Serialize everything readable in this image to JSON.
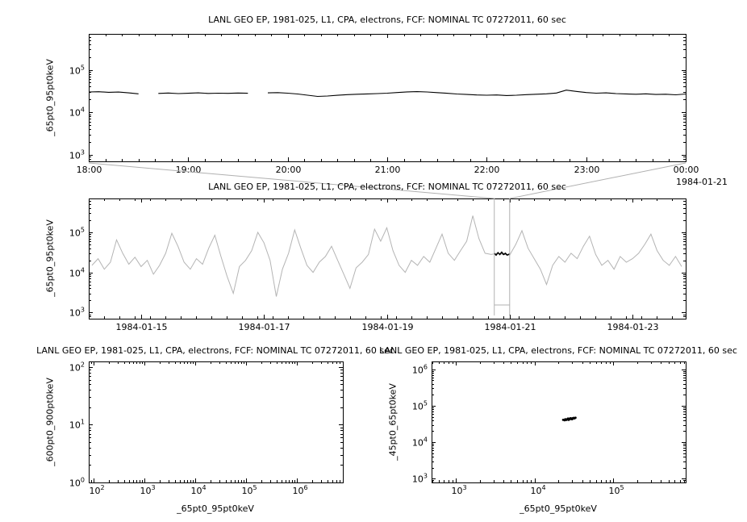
{
  "page": {
    "background": "#ffffff",
    "series_gray": "#b4b4b4",
    "context_gray": "#b0b0b0",
    "data_black": "#000000"
  },
  "chart_data": [
    {
      "id": "top",
      "type": "line",
      "title": "LANL GEO EP, 1981-025, L1, CPA, electrons, FCF: NOMINAL TC 07272011, 60 sec",
      "ylabel": "_65pt0_95pt0keV",
      "xlabel": "",
      "x_axis": {
        "scale": "linear",
        "min": 18,
        "max": 24,
        "minor_step": 0.16667,
        "corner_label": "1984-01-21",
        "major_ticks": [
          {
            "v": 18,
            "label": "18:00"
          },
          {
            "v": 19,
            "label": "19:00"
          },
          {
            "v": 20,
            "label": "20:00"
          },
          {
            "v": 21,
            "label": "21:00"
          },
          {
            "v": 22,
            "label": "22:00"
          },
          {
            "v": 23,
            "label": "23:00"
          },
          {
            "v": 24,
            "label": "00:00"
          }
        ]
      },
      "y_axis": {
        "scale": "log",
        "min": 700,
        "max": 700000,
        "major_exponents": [
          3,
          4,
          5
        ]
      },
      "series": [
        {
          "name": "_65pt0_95pt0keV",
          "color": "#000000",
          "width": 1.1,
          "points": [
            [
              18.0,
              30000
            ],
            [
              18.1,
              30400
            ],
            [
              18.2,
              29600
            ],
            [
              18.3,
              29900
            ],
            [
              18.4,
              28600
            ],
            [
              18.5,
              27200
            ],
            [
              18.6,
              null
            ],
            [
              18.7,
              27800
            ],
            [
              18.8,
              28400
            ],
            [
              18.9,
              27600
            ],
            [
              19.0,
              28000
            ],
            [
              19.1,
              28600
            ],
            [
              19.2,
              27800
            ],
            [
              19.3,
              28200
            ],
            [
              19.4,
              27900
            ],
            [
              19.5,
              28400
            ],
            [
              19.6,
              28000
            ],
            [
              19.7,
              null
            ],
            [
              19.8,
              28600
            ],
            [
              19.9,
              29000
            ],
            [
              20.0,
              28200
            ],
            [
              20.1,
              27000
            ],
            [
              20.2,
              25200
            ],
            [
              20.3,
              23600
            ],
            [
              20.4,
              24200
            ],
            [
              20.5,
              25100
            ],
            [
              20.6,
              26000
            ],
            [
              20.7,
              26600
            ],
            [
              20.8,
              27100
            ],
            [
              20.9,
              27600
            ],
            [
              21.0,
              28200
            ],
            [
              21.1,
              29200
            ],
            [
              21.2,
              30200
            ],
            [
              21.3,
              30600
            ],
            [
              21.4,
              30000
            ],
            [
              21.5,
              29000
            ],
            [
              21.6,
              28000
            ],
            [
              21.7,
              27000
            ],
            [
              21.8,
              26200
            ],
            [
              21.9,
              25600
            ],
            [
              22.0,
              25200
            ],
            [
              22.1,
              25600
            ],
            [
              22.2,
              24800
            ],
            [
              22.3,
              25200
            ],
            [
              22.4,
              26000
            ],
            [
              22.5,
              26600
            ],
            [
              22.6,
              27200
            ],
            [
              22.7,
              28400
            ],
            [
              22.8,
              33200
            ],
            [
              22.9,
              31000
            ],
            [
              23.0,
              29200
            ],
            [
              23.1,
              28200
            ],
            [
              23.2,
              28600
            ],
            [
              23.3,
              27600
            ],
            [
              23.4,
              27100
            ],
            [
              23.5,
              26600
            ],
            [
              23.6,
              27200
            ],
            [
              23.7,
              26200
            ],
            [
              23.8,
              26600
            ],
            [
              23.9,
              25800
            ],
            [
              24.0,
              27000
            ]
          ]
        }
      ]
    },
    {
      "id": "middle",
      "type": "line",
      "title": "LANL GEO EP, 1981-025, L1, CPA, electrons, FCF: NOMINAL TC 07272011, 60 sec",
      "ylabel": "_65pt0_95pt0keV",
      "xlabel": "",
      "x_axis": {
        "scale": "linear",
        "min": 14.147,
        "max": 23.866,
        "minor_step": 0.25,
        "major_ticks": [
          {
            "v": 15,
            "label": "1984-01-15"
          },
          {
            "v": 17,
            "label": "1984-01-17"
          },
          {
            "v": 19,
            "label": "1984-01-19"
          },
          {
            "v": 21,
            "label": "1984-01-21"
          },
          {
            "v": 23,
            "label": "1984-01-23"
          }
        ]
      },
      "y_axis": {
        "scale": "log",
        "min": 700,
        "max": 700000,
        "major_exponents": [
          3,
          4,
          5
        ]
      },
      "context_box": {
        "x0": 20.75,
        "x1": 21.0
      },
      "series": [
        {
          "name": "_65pt0_95pt0keV overview",
          "color": "#b4b4b4",
          "width": 1,
          "points": [
            [
              14.2,
              15000
            ],
            [
              14.3,
              22000
            ],
            [
              14.4,
              12000
            ],
            [
              14.5,
              18000
            ],
            [
              14.6,
              65000
            ],
            [
              14.7,
              30000
            ],
            [
              14.8,
              16000
            ],
            [
              14.9,
              24000
            ],
            [
              15.0,
              14000
            ],
            [
              15.1,
              20000
            ],
            [
              15.2,
              9000
            ],
            [
              15.3,
              15000
            ],
            [
              15.4,
              30000
            ],
            [
              15.5,
              95000
            ],
            [
              15.6,
              45000
            ],
            [
              15.7,
              18000
            ],
            [
              15.8,
              12000
            ],
            [
              15.9,
              22000
            ],
            [
              16.0,
              16000
            ],
            [
              16.1,
              40000
            ],
            [
              16.2,
              85000
            ],
            [
              16.3,
              25000
            ],
            [
              16.4,
              8000
            ],
            [
              16.5,
              3000
            ],
            [
              16.6,
              14000
            ],
            [
              16.7,
              20000
            ],
            [
              16.8,
              35000
            ],
            [
              16.9,
              100000
            ],
            [
              17.0,
              55000
            ],
            [
              17.1,
              20000
            ],
            [
              17.2,
              2500
            ],
            [
              17.3,
              12000
            ],
            [
              17.4,
              30000
            ],
            [
              17.5,
              115000
            ],
            [
              17.6,
              40000
            ],
            [
              17.7,
              15000
            ],
            [
              17.8,
              10000
            ],
            [
              17.9,
              18000
            ],
            [
              18.0,
              25000
            ],
            [
              18.1,
              45000
            ],
            [
              18.2,
              20000
            ],
            [
              18.3,
              9000
            ],
            [
              18.4,
              4000
            ],
            [
              18.5,
              13000
            ],
            [
              18.6,
              18000
            ],
            [
              18.7,
              28000
            ],
            [
              18.8,
              120000
            ],
            [
              18.9,
              60000
            ],
            [
              19.0,
              130000
            ],
            [
              19.1,
              35000
            ],
            [
              19.2,
              15000
            ],
            [
              19.3,
              10000
            ],
            [
              19.4,
              20000
            ],
            [
              19.5,
              15000
            ],
            [
              19.6,
              25000
            ],
            [
              19.7,
              18000
            ],
            [
              19.8,
              40000
            ],
            [
              19.9,
              90000
            ],
            [
              20.0,
              30000
            ],
            [
              20.1,
              20000
            ],
            [
              20.2,
              35000
            ],
            [
              20.3,
              60000
            ],
            [
              20.4,
              260000
            ],
            [
              20.5,
              70000
            ],
            [
              20.6,
              30000
            ],
            [
              20.7,
              28000
            ],
            [
              20.8,
              30000
            ],
            [
              20.9,
              28000
            ],
            [
              21.0,
              27000
            ],
            [
              21.1,
              50000
            ],
            [
              21.2,
              110000
            ],
            [
              21.3,
              40000
            ],
            [
              21.4,
              22000
            ],
            [
              21.5,
              12000
            ],
            [
              21.6,
              5000
            ],
            [
              21.7,
              15000
            ],
            [
              21.8,
              25000
            ],
            [
              21.9,
              18000
            ],
            [
              22.0,
              30000
            ],
            [
              22.1,
              22000
            ],
            [
              22.2,
              45000
            ],
            [
              22.3,
              80000
            ],
            [
              22.4,
              28000
            ],
            [
              22.5,
              15000
            ],
            [
              22.6,
              20000
            ],
            [
              22.7,
              12000
            ],
            [
              22.8,
              25000
            ],
            [
              22.9,
              18000
            ],
            [
              23.0,
              22000
            ],
            [
              23.1,
              30000
            ],
            [
              23.2,
              50000
            ],
            [
              23.3,
              90000
            ],
            [
              23.4,
              35000
            ],
            [
              23.5,
              20000
            ],
            [
              23.6,
              15000
            ],
            [
              23.7,
              25000
            ],
            [
              23.8,
              14000
            ]
          ]
        },
        {
          "name": "selected interval highlight",
          "color": "#000000",
          "width": 1.6,
          "points": [
            [
              20.75,
              30000
            ],
            [
              20.78,
              27000
            ],
            [
              20.81,
              31000
            ],
            [
              20.84,
              28000
            ],
            [
              20.87,
              32000
            ],
            [
              20.9,
              28000
            ],
            [
              20.93,
              30000
            ],
            [
              20.96,
              27000
            ],
            [
              21.0,
              29000
            ]
          ]
        }
      ]
    },
    {
      "id": "bottom_left",
      "type": "scatter",
      "title": "LANL GEO EP, 1981-025, L1, CPA, electrons, FCF: NOMINAL TC 07272011, 60 sec",
      "ylabel": "_600pt0_900pt0keV",
      "xlabel": "_65pt0_95pt0keV",
      "x_axis": {
        "scale": "log",
        "min": 80,
        "max": 8000000,
        "major_exponents": [
          2,
          3,
          4,
          5,
          6
        ]
      },
      "y_axis": {
        "scale": "log",
        "min": 1,
        "max": 125,
        "major_exponents": [
          0,
          1,
          2
        ]
      },
      "series": [
        {
          "name": "_600pt0_900pt0keV vs _65pt0_95pt0keV",
          "color": "#000000",
          "points": []
        }
      ]
    },
    {
      "id": "bottom_right",
      "type": "scatter",
      "title": "LANL GEO EP, 1981-025, L1, CPA, electrons, FCF: NOMINAL TC 07272011, 60 sec",
      "ylabel": "_45pt0_65pt0keV",
      "xlabel": "_65pt0_95pt0keV",
      "x_axis": {
        "scale": "log",
        "min": 490,
        "max": 830000,
        "major_exponents": [
          3,
          4,
          5
        ]
      },
      "y_axis": {
        "scale": "log",
        "min": 780,
        "max": 1660000,
        "major_exponents": [
          3,
          4,
          5,
          6
        ]
      },
      "series": [
        {
          "name": "_45pt0_65pt0keV vs _65pt0_95pt0keV",
          "color": "#000000",
          "points": [
            [
              25000,
              42000
            ],
            [
              26000,
              43000
            ],
            [
              27000,
              41000
            ],
            [
              28000,
              44000
            ],
            [
              29000,
              45000
            ],
            [
              30000,
              43000
            ],
            [
              31000,
              46000
            ],
            [
              24000,
              40000
            ],
            [
              23000,
              41000
            ],
            [
              26500,
              44500
            ],
            [
              27500,
              42500
            ],
            [
              28500,
              45500
            ],
            [
              29500,
              44000
            ],
            [
              30500,
              44500
            ],
            [
              32000,
              45000
            ],
            [
              33000,
              47000
            ],
            [
              25500,
              41500
            ],
            [
              24500,
              42500
            ],
            [
              31500,
              46500
            ],
            [
              26800,
              43800
            ],
            [
              29800,
              42800
            ],
            [
              28200,
              43200
            ],
            [
              27200,
              44200
            ],
            [
              30200,
              45200
            ],
            [
              25200,
              40800
            ]
          ]
        }
      ]
    }
  ]
}
